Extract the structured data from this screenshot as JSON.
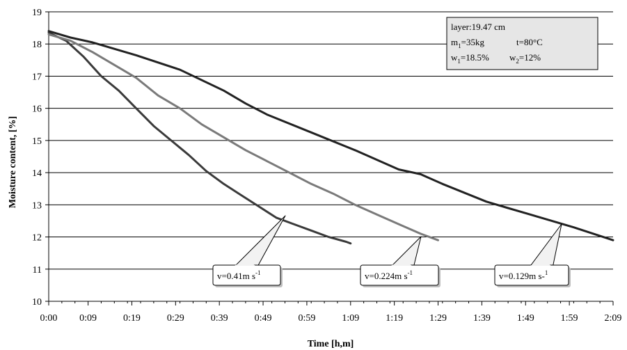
{
  "chart_data": {
    "type": "line",
    "xlabel": "Time [h,m]",
    "ylabel": "Moisture content, [%]",
    "ylim": [
      10,
      19
    ],
    "xlim_minutes": [
      0,
      129
    ],
    "grid": {
      "horizontal": true,
      "vertical": false
    },
    "yticks": [
      10,
      11,
      12,
      13,
      14,
      15,
      16,
      17,
      18,
      19
    ],
    "xticks": [
      {
        "value": 0,
        "label": "0:00"
      },
      {
        "value": 9,
        "label": "0:09"
      },
      {
        "value": 19,
        "label": "0:19"
      },
      {
        "value": 29,
        "label": "0:29"
      },
      {
        "value": 39,
        "label": "0:39"
      },
      {
        "value": 49,
        "label": "0:49"
      },
      {
        "value": 59,
        "label": "0:59"
      },
      {
        "value": 69,
        "label": "1:09"
      },
      {
        "value": 79,
        "label": "1:19"
      },
      {
        "value": 89,
        "label": "1:29"
      },
      {
        "value": 99,
        "label": "1:39"
      },
      {
        "value": 109,
        "label": "1:49"
      },
      {
        "value": 119,
        "label": "1:59"
      },
      {
        "value": 129,
        "label": "2:09"
      }
    ],
    "series": [
      {
        "name": "v=0.41m s-1",
        "color": "#3a3a3a",
        "x": [
          0,
          4,
          8,
          12,
          16,
          20,
          24,
          28,
          32,
          36,
          40,
          44,
          48,
          52,
          56,
          60,
          64,
          68,
          69
        ],
        "y": [
          18.35,
          18.1,
          17.6,
          17.0,
          16.55,
          16.0,
          15.45,
          15.0,
          14.55,
          14.05,
          13.65,
          13.3,
          12.95,
          12.6,
          12.4,
          12.2,
          12.0,
          11.85,
          11.8
        ]
      },
      {
        "name": "v=0.224m s-1",
        "color": "#7a7a7a",
        "x": [
          0,
          5,
          10,
          15,
          20,
          25,
          30,
          35,
          40,
          45,
          50,
          55,
          60,
          65,
          70,
          75,
          80,
          85,
          89
        ],
        "y": [
          18.3,
          18.1,
          17.75,
          17.35,
          16.95,
          16.4,
          16.0,
          15.5,
          15.1,
          14.7,
          14.35,
          14.0,
          13.65,
          13.35,
          13.0,
          12.7,
          12.4,
          12.1,
          11.9
        ]
      },
      {
        "name": "v=0.129m s-1",
        "color": "#222222",
        "x": [
          0,
          5,
          10,
          20,
          30,
          40,
          45,
          50,
          60,
          70,
          80,
          85,
          90,
          100,
          105,
          110,
          120,
          129
        ],
        "y": [
          18.4,
          18.2,
          18.05,
          17.65,
          17.2,
          16.55,
          16.15,
          15.8,
          15.25,
          14.7,
          14.1,
          13.95,
          13.65,
          13.1,
          12.9,
          12.7,
          12.3,
          11.9
        ]
      }
    ],
    "callouts": [
      {
        "prefix": "v=0.41m s",
        "sup": "-1",
        "series": 0
      },
      {
        "prefix": "v=0.224m s",
        "sup": "-1",
        "series": 1
      },
      {
        "prefix": "v=0.129m s-",
        "sup": "1",
        "series": 2
      }
    ],
    "info_box": {
      "line1": "layer:19.47 cm",
      "m_var": "m",
      "m_sub": "1",
      "m_val": "=35kg",
      "t_text": "t=80°C",
      "w1_var": "w",
      "w1_sub": "1",
      "w1_val": "=18.5%",
      "w2_var": "w",
      "w2_sub": "2",
      "w2_val": "=12%"
    }
  }
}
